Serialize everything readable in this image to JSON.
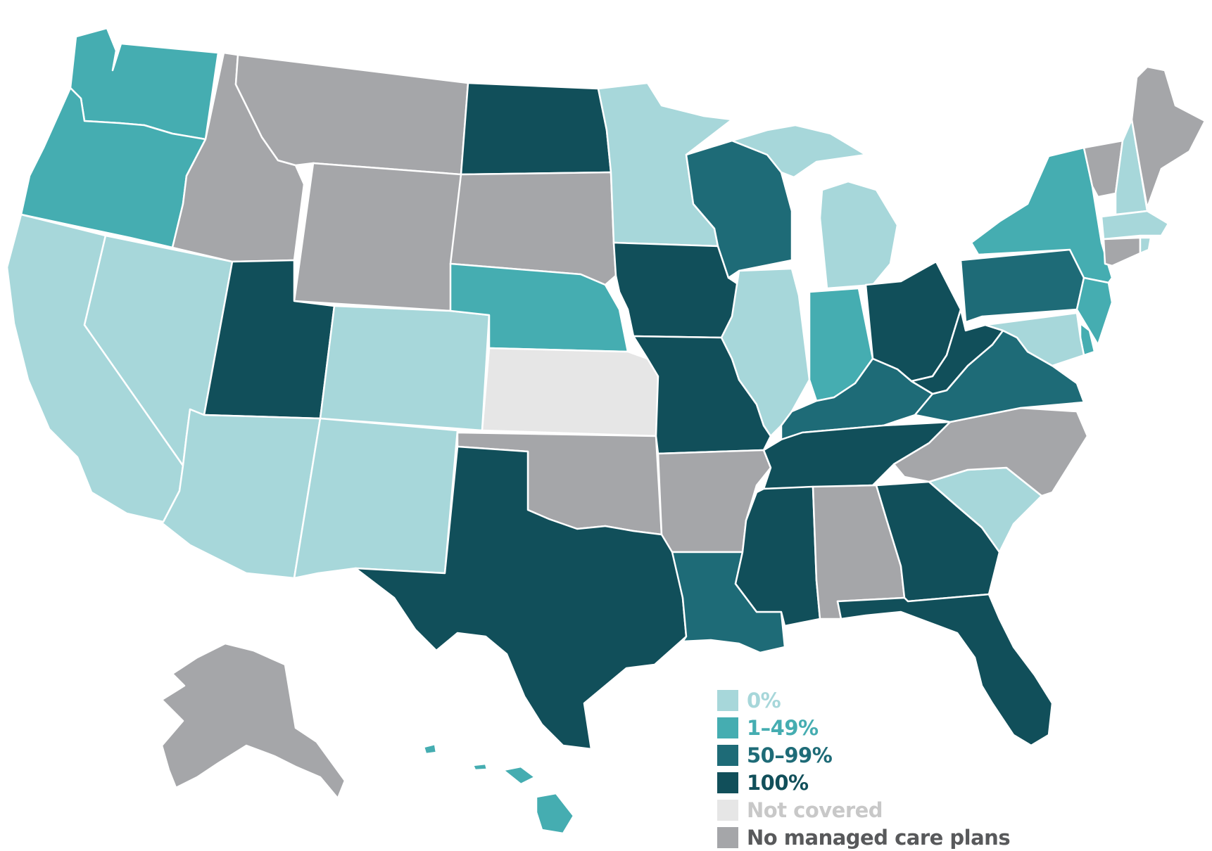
{
  "map": {
    "categories": {
      "zero": {
        "label": "0%",
        "color": "#a7d7da"
      },
      "low": {
        "label": "1–49%",
        "color": "#45adb1"
      },
      "mid": {
        "label": "50–99%",
        "color": "#1e6b77"
      },
      "full": {
        "label": "100%",
        "color": "#114f5a"
      },
      "notcov": {
        "label": "Not covered",
        "color": "#e6e6e6"
      },
      "none": {
        "label": "No managed care plans",
        "color": "#a5a6a9"
      }
    },
    "legend_order": [
      "zero",
      "low",
      "mid",
      "full",
      "notcov",
      "none"
    ],
    "states": {
      "WA": "low",
      "OR": "low",
      "CA": "zero",
      "NV": "zero",
      "ID": "none",
      "MT": "none",
      "WY": "none",
      "UT": "full",
      "AZ": "zero",
      "CO": "zero",
      "NM": "zero",
      "ND": "full",
      "SD": "none",
      "NE": "low",
      "KS": "notcov",
      "OK": "none",
      "TX": "full",
      "MN": "zero",
      "IA": "full",
      "MO": "full",
      "AR": "none",
      "LA": "mid",
      "WI": "mid",
      "IL": "zero",
      "MI": "zero",
      "IN": "low",
      "OH": "full",
      "KY": "mid",
      "TN": "full",
      "MS": "full",
      "AL": "none",
      "GA": "full",
      "FL": "full",
      "SC": "zero",
      "NC": "none",
      "VA": "mid",
      "WV": "full",
      "PA": "mid",
      "NY": "low",
      "NJ": "low",
      "DE": "low",
      "MD": "zero",
      "VT": "none",
      "NH": "zero",
      "ME": "none",
      "MA": "zero",
      "CT": "none",
      "RI": "zero",
      "AK": "none",
      "HI": "low"
    }
  }
}
